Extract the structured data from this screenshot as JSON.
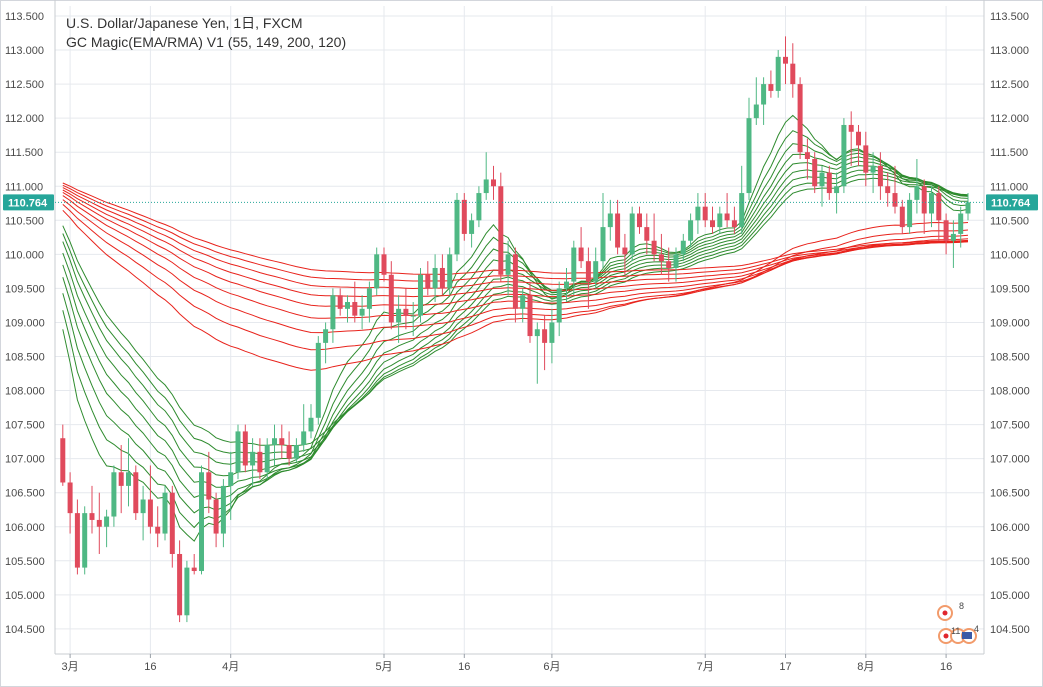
{
  "legend": {
    "title": "U.S. Dollar/Japanese Yen, 1日, FXCM",
    "indicator": "GC Magic(EMA/RMA) V1 (55, 149, 200, 120)"
  },
  "current_price": {
    "label": "110.764",
    "value": 110.764,
    "color": "#26a69a"
  },
  "events": {
    "badge_top": "8",
    "badge_bottom": "11",
    "badge_bottom_right": "4"
  },
  "colors": {
    "up": "#4fb884",
    "down": "#e04a5c",
    "fast_lines": "#2e8b2e",
    "slow_lines": "#e8231c",
    "grid": "#e6e9ee",
    "price_line": "#26a69a"
  },
  "chart_data": {
    "type": "candlestick",
    "title": "U.S. Dollar/Japanese Yen, 1日, FXCM",
    "xlabel": "",
    "ylabel": "",
    "ylim": [
      104.2,
      113.55
    ],
    "y_ticks": [
      "113.500",
      "113.000",
      "112.500",
      "112.000",
      "111.500",
      "111.000",
      "110.500",
      "110.000",
      "109.500",
      "109.000",
      "108.500",
      "108.000",
      "107.500",
      "107.000",
      "106.500",
      "106.000",
      "105.500",
      "105.000",
      "104.500"
    ],
    "x_ticks": [
      {
        "label": "3月",
        "index": 1
      },
      {
        "label": "16",
        "index": 12
      },
      {
        "label": "4月",
        "index": 23
      },
      {
        "label": "5月",
        "index": 44
      },
      {
        "label": "16",
        "index": 55
      },
      {
        "label": "6月",
        "index": 67
      },
      {
        "label": "7月",
        "index": 88
      },
      {
        "label": "17",
        "index": 99
      },
      {
        "label": "8月",
        "index": 110
      },
      {
        "label": "16",
        "index": 121
      }
    ],
    "grid": true,
    "legend_position": "top-left",
    "candles": [
      [
        107.3,
        107.5,
        106.6,
        106.65
      ],
      [
        106.65,
        106.8,
        105.9,
        106.2
      ],
      [
        106.2,
        106.4,
        105.3,
        105.4
      ],
      [
        105.4,
        106.3,
        105.3,
        106.2
      ],
      [
        106.2,
        106.6,
        105.9,
        106.1
      ],
      [
        106.1,
        106.5,
        105.6,
        106.0
      ],
      [
        106.0,
        106.25,
        105.7,
        106.15
      ],
      [
        106.15,
        106.9,
        106.0,
        106.8
      ],
      [
        106.8,
        107.2,
        106.2,
        106.6
      ],
      [
        106.6,
        107.3,
        106.3,
        106.8
      ],
      [
        106.8,
        106.9,
        106.1,
        106.2
      ],
      [
        106.2,
        106.6,
        105.8,
        106.4
      ],
      [
        106.4,
        106.9,
        105.9,
        106.0
      ],
      [
        106.0,
        106.3,
        105.7,
        105.9
      ],
      [
        105.9,
        106.6,
        105.8,
        106.5
      ],
      [
        106.5,
        106.6,
        105.4,
        105.6
      ],
      [
        105.6,
        105.8,
        104.6,
        104.7
      ],
      [
        104.7,
        105.5,
        104.6,
        105.4
      ],
      [
        105.4,
        105.6,
        105.3,
        105.35
      ],
      [
        105.35,
        106.9,
        105.3,
        106.8
      ],
      [
        106.8,
        107.1,
        106.2,
        106.4
      ],
      [
        106.4,
        106.5,
        105.7,
        105.9
      ],
      [
        105.9,
        106.7,
        105.7,
        106.6
      ],
      [
        106.6,
        107.1,
        106.1,
        106.8
      ],
      [
        106.8,
        107.5,
        106.7,
        107.4
      ],
      [
        107.4,
        107.5,
        106.8,
        106.9
      ],
      [
        106.9,
        107.3,
        106.6,
        107.1
      ],
      [
        107.1,
        107.3,
        106.7,
        106.8
      ],
      [
        106.8,
        107.3,
        106.7,
        107.2
      ],
      [
        107.2,
        107.5,
        106.9,
        107.3
      ],
      [
        107.3,
        107.5,
        107.0,
        107.2
      ],
      [
        107.2,
        107.4,
        106.9,
        107.0
      ],
      [
        107.0,
        107.3,
        106.95,
        107.2
      ],
      [
        107.2,
        107.8,
        107.1,
        107.4
      ],
      [
        107.4,
        107.8,
        107.3,
        107.6
      ],
      [
        107.6,
        108.8,
        107.5,
        108.7
      ],
      [
        108.7,
        109.0,
        108.4,
        108.9
      ],
      [
        108.9,
        109.5,
        108.7,
        109.4
      ],
      [
        109.4,
        109.5,
        109.1,
        109.2
      ],
      [
        109.2,
        109.4,
        109.0,
        109.3
      ],
      [
        109.3,
        109.6,
        109.0,
        109.1
      ],
      [
        109.1,
        109.4,
        108.9,
        109.2
      ],
      [
        109.2,
        109.6,
        109.0,
        109.5
      ],
      [
        109.5,
        110.1,
        109.4,
        110.0
      ],
      [
        110.0,
        110.1,
        109.6,
        109.7
      ],
      [
        109.7,
        109.9,
        108.9,
        109.0
      ],
      [
        109.0,
        109.4,
        108.7,
        109.2
      ],
      [
        109.2,
        109.5,
        108.9,
        109.1
      ],
      [
        109.1,
        109.3,
        108.8,
        109.1
      ],
      [
        109.1,
        109.8,
        109.0,
        109.7
      ],
      [
        109.7,
        109.9,
        109.4,
        109.5
      ],
      [
        109.5,
        110.0,
        109.3,
        109.8
      ],
      [
        109.8,
        110.0,
        109.4,
        109.5
      ],
      [
        109.5,
        110.1,
        109.4,
        110.0
      ],
      [
        110.0,
        110.9,
        109.9,
        110.8
      ],
      [
        110.8,
        110.9,
        110.2,
        110.3
      ],
      [
        110.3,
        110.6,
        110.1,
        110.5
      ],
      [
        110.5,
        111.0,
        110.4,
        110.9
      ],
      [
        110.9,
        111.5,
        110.8,
        111.1
      ],
      [
        111.1,
        111.3,
        110.8,
        111.0
      ],
      [
        111.0,
        111.2,
        109.6,
        109.7
      ],
      [
        109.7,
        110.2,
        109.4,
        110.0
      ],
      [
        110.0,
        110.1,
        109.0,
        109.2
      ],
      [
        109.2,
        109.5,
        109.0,
        109.4
      ],
      [
        109.4,
        109.6,
        108.7,
        108.8
      ],
      [
        108.8,
        109.0,
        108.1,
        108.9
      ],
      [
        108.9,
        109.1,
        108.3,
        108.7
      ],
      [
        108.7,
        109.2,
        108.4,
        109.0
      ],
      [
        109.0,
        109.6,
        108.8,
        109.5
      ],
      [
        109.5,
        109.8,
        109.3,
        109.6
      ],
      [
        109.6,
        110.2,
        109.4,
        110.1
      ],
      [
        110.1,
        110.4,
        109.8,
        109.9
      ],
      [
        109.9,
        110.1,
        109.2,
        109.6
      ],
      [
        109.6,
        110.1,
        109.5,
        109.9
      ],
      [
        109.9,
        110.9,
        109.8,
        110.4
      ],
      [
        110.4,
        110.8,
        110.2,
        110.6
      ],
      [
        110.6,
        110.8,
        110.0,
        110.1
      ],
      [
        110.1,
        110.3,
        109.7,
        110.0
      ],
      [
        110.0,
        110.7,
        109.9,
        110.6
      ],
      [
        110.6,
        110.7,
        110.3,
        110.4
      ],
      [
        110.4,
        110.6,
        110.0,
        110.2
      ],
      [
        110.2,
        110.6,
        109.9,
        110.0
      ],
      [
        110.0,
        110.3,
        109.7,
        109.9
      ],
      [
        109.9,
        110.1,
        109.6,
        109.8
      ],
      [
        109.8,
        110.1,
        109.6,
        110.0
      ],
      [
        110.0,
        110.3,
        109.9,
        110.2
      ],
      [
        110.2,
        110.6,
        110.1,
        110.5
      ],
      [
        110.5,
        110.9,
        110.3,
        110.7
      ],
      [
        110.7,
        110.9,
        110.4,
        110.5
      ],
      [
        110.5,
        110.7,
        110.3,
        110.4
      ],
      [
        110.4,
        110.7,
        110.3,
        110.6
      ],
      [
        110.6,
        110.9,
        110.4,
        110.5
      ],
      [
        110.5,
        110.7,
        110.3,
        110.4
      ],
      [
        110.4,
        111.3,
        110.3,
        110.9
      ],
      [
        110.9,
        112.3,
        110.8,
        112.0
      ],
      [
        112.0,
        112.6,
        111.9,
        112.2
      ],
      [
        112.2,
        112.6,
        111.9,
        112.5
      ],
      [
        112.5,
        112.7,
        112.3,
        112.4
      ],
      [
        112.4,
        113.0,
        112.3,
        112.9
      ],
      [
        112.9,
        113.2,
        112.5,
        112.8
      ],
      [
        112.8,
        113.1,
        112.3,
        112.5
      ],
      [
        112.5,
        112.6,
        111.4,
        111.5
      ],
      [
        111.5,
        111.7,
        111.1,
        111.4
      ],
      [
        111.4,
        111.5,
        110.9,
        111.0
      ],
      [
        111.0,
        111.3,
        110.7,
        111.2
      ],
      [
        111.2,
        111.3,
        110.8,
        110.9
      ],
      [
        110.9,
        111.2,
        110.6,
        111.0
      ],
      [
        111.0,
        112.0,
        110.9,
        111.9
      ],
      [
        111.9,
        112.1,
        111.3,
        111.8
      ],
      [
        111.8,
        111.9,
        111.3,
        111.6
      ],
      [
        111.6,
        111.8,
        111.0,
        111.2
      ],
      [
        111.2,
        111.5,
        110.9,
        111.3
      ],
      [
        111.3,
        111.5,
        110.8,
        111.0
      ],
      [
        111.0,
        111.2,
        110.7,
        110.9
      ],
      [
        110.9,
        111.3,
        110.6,
        110.7
      ],
      [
        110.7,
        110.8,
        110.3,
        110.4
      ],
      [
        110.4,
        110.9,
        110.3,
        110.8
      ],
      [
        110.8,
        111.4,
        110.6,
        111.0
      ],
      [
        111.0,
        111.1,
        110.3,
        110.6
      ],
      [
        110.6,
        111.0,
        110.4,
        110.9
      ],
      [
        110.9,
        111.0,
        110.2,
        110.5
      ],
      [
        110.5,
        110.6,
        110.0,
        110.2
      ],
      [
        110.2,
        110.5,
        109.8,
        110.3
      ],
      [
        110.3,
        110.7,
        110.1,
        110.6
      ],
      [
        110.6,
        110.9,
        110.5,
        110.764
      ]
    ]
  }
}
